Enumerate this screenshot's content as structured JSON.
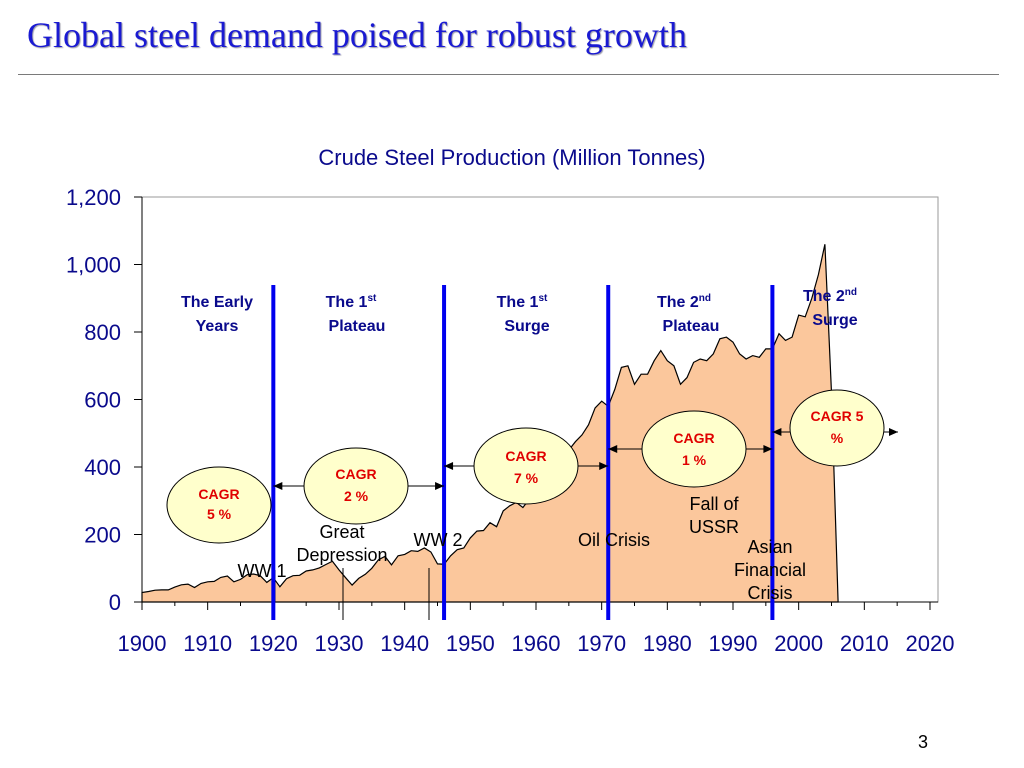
{
  "slide": {
    "title": "Global steel demand poised for robust growth",
    "page_number": "3"
  },
  "chart_data": {
    "type": "area",
    "title": "Crude Steel Production (Million Tonnes)",
    "xlabel": "",
    "ylabel": "",
    "xlim": [
      1900,
      2020
    ],
    "ylim": [
      0,
      1200
    ],
    "x_ticks": [
      "1900",
      "1910",
      "1920",
      "1930",
      "1940",
      "1950",
      "1960",
      "1970",
      "1980",
      "1990",
      "2000",
      "2010",
      "2020"
    ],
    "y_ticks": [
      "0",
      "200",
      "400",
      "600",
      "800",
      "1,000",
      "1,200"
    ],
    "grid": false,
    "legend": "none",
    "colors": {
      "fill": "#fbc79c",
      "line": "#000000",
      "divider": "#0000ee",
      "bubble": "#ffffcc",
      "axis_text": "#0a0a8c",
      "cagr_text": "#e00000"
    },
    "series": [
      {
        "x": [
          1900,
          1901,
          1902,
          1903,
          1904,
          1905,
          1906,
          1907,
          1908,
          1909,
          1910,
          1911,
          1912,
          1913,
          1914,
          1915,
          1916,
          1917,
          1918,
          1919,
          1920,
          1921,
          1922,
          1923,
          1924,
          1925,
          1926,
          1927,
          1928,
          1929,
          1930,
          1931,
          1932,
          1933,
          1934,
          1935,
          1936,
          1937,
          1938,
          1939,
          1940,
          1941,
          1942,
          1943,
          1944,
          1945,
          1946,
          1947,
          1948,
          1949,
          1950,
          1951,
          1952,
          1953,
          1954,
          1955,
          1956,
          1957,
          1958,
          1959,
          1960,
          1961,
          1962,
          1963,
          1964,
          1965,
          1966,
          1967,
          1968,
          1969,
          1970,
          1971,
          1972,
          1973,
          1974,
          1975,
          1976,
          1977,
          1978,
          1979,
          1980,
          1981,
          1982,
          1983,
          1984,
          1985,
          1986,
          1987,
          1988,
          1989,
          1990,
          1991,
          1992,
          1993,
          1994,
          1995,
          1996,
          1997,
          1998,
          1999,
          2000,
          2001,
          2002,
          2003,
          2004,
          2005,
          2006
        ],
        "values": [
          28,
          31,
          35,
          36,
          36,
          44,
          51,
          53,
          43,
          55,
          60,
          61,
          73,
          77,
          60,
          67,
          81,
          83,
          78,
          58,
          72,
          45,
          69,
          78,
          79,
          92,
          95,
          101,
          111,
          121,
          95,
          72,
          50,
          70,
          82,
          100,
          125,
          135,
          110,
          137,
          141,
          152,
          150,
          160,
          148,
          113,
          112,
          137,
          155,
          160,
          190,
          210,
          212,
          235,
          223,
          270,
          285,
          295,
          280,
          305,
          347,
          355,
          370,
          385,
          430,
          450,
          475,
          495,
          525,
          575,
          595,
          580,
          630,
          695,
          700,
          645,
          675,
          675,
          715,
          745,
          715,
          700,
          645,
          665,
          710,
          720,
          715,
          735,
          780,
          785,
          770,
          735,
          720,
          730,
          725,
          750,
          750,
          795,
          775,
          785,
          850,
          845,
          900,
          970,
          1060,
          620,
          0
        ]
      }
    ],
    "eras": [
      {
        "line1": "The Early",
        "line2": "Years"
      },
      {
        "line1": "The 1",
        "sup": "st",
        "line2": "Plateau"
      },
      {
        "line1": "The 1",
        "sup": "st",
        "line2": "Surge"
      },
      {
        "line1": "The 2",
        "sup": "nd",
        "line2": "Plateau"
      },
      {
        "line1": "The 2",
        "sup": "nd",
        "line2": "Surge"
      }
    ],
    "era_dividers": [
      1920,
      1946,
      1971,
      1996
    ],
    "cagr": [
      {
        "line1": "CAGR",
        "line2": "5 %"
      },
      {
        "line1": "CAGR",
        "line2": "2 %"
      },
      {
        "line1": "CAGR",
        "line2": "7 %"
      },
      {
        "line1": "CAGR",
        "line2": "1 %"
      },
      {
        "line1": "CAGR 5",
        "line2": "%"
      }
    ],
    "events": [
      {
        "lines": [
          "WW 1"
        ]
      },
      {
        "lines": [
          "Great",
          "Depression"
        ]
      },
      {
        "lines": [
          "WW 2"
        ]
      },
      {
        "lines": [
          "Oil Crisis"
        ]
      },
      {
        "lines": [
          "Fall of",
          "USSR"
        ]
      },
      {
        "lines": [
          "Asian",
          "Financial",
          "Crisis"
        ]
      }
    ]
  }
}
